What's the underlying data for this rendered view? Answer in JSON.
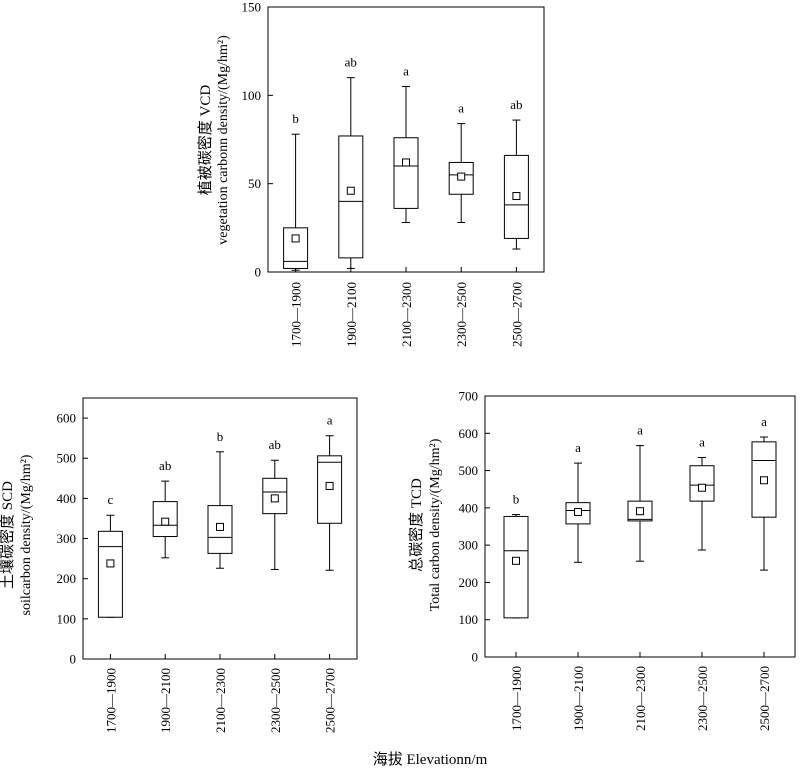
{
  "figure": {
    "xlabel": "海拔  Elevationn/m"
  },
  "chart_data": [
    {
      "type": "box",
      "id": "vcd",
      "ylabel_cn": "植被碳密度 VCD",
      "ylabel_en": "vegetation carbonn density/(Mg/hm²)",
      "ylim": [
        0,
        150
      ],
      "yticks": [
        0,
        50,
        100,
        150
      ],
      "categories": [
        "1700—1900",
        "1900—2100",
        "2100—2300",
        "2300—2500",
        "2500—2700"
      ],
      "boxes": [
        {
          "min": 1,
          "q1": 2,
          "median": 6,
          "q3": 25,
          "max": 78,
          "mean": 19,
          "letter": "b"
        },
        {
          "min": 2,
          "q1": 8,
          "median": 40,
          "q3": 77,
          "max": 110,
          "mean": 46,
          "letter": "ab"
        },
        {
          "min": 28,
          "q1": 36,
          "median": 60,
          "q3": 76,
          "max": 105,
          "mean": 62,
          "letter": "a"
        },
        {
          "min": 28,
          "q1": 44,
          "median": 55,
          "q3": 62,
          "max": 84,
          "mean": 54,
          "letter": "a"
        },
        {
          "min": 13,
          "q1": 19,
          "median": 38,
          "q3": 66,
          "max": 86,
          "mean": 43,
          "letter": "ab"
        }
      ]
    },
    {
      "type": "box",
      "id": "scd",
      "ylabel_cn": "土壤碳密度 SCD",
      "ylabel_en": "soilcarbon density/(Mg/hm²)",
      "ylim": [
        0,
        650
      ],
      "yticks": [
        0,
        100,
        200,
        300,
        400,
        500,
        600
      ],
      "categories": [
        "1700—1900",
        "1900—2100",
        "2100—2300",
        "2300—2500",
        "2500—2700"
      ],
      "boxes": [
        {
          "min": 104,
          "q1": 104,
          "median": 280,
          "q3": 318,
          "max": 358,
          "mean": 238,
          "letter": "c"
        },
        {
          "min": 252,
          "q1": 305,
          "median": 333,
          "q3": 392,
          "max": 443,
          "mean": 342,
          "letter": "ab"
        },
        {
          "min": 226,
          "q1": 263,
          "median": 303,
          "q3": 382,
          "max": 516,
          "mean": 329,
          "letter": "b"
        },
        {
          "min": 223,
          "q1": 362,
          "median": 416,
          "q3": 450,
          "max": 495,
          "mean": 400,
          "letter": "ab"
        },
        {
          "min": 221,
          "q1": 338,
          "median": 490,
          "q3": 506,
          "max": 556,
          "mean": 431,
          "letter": "a"
        }
      ]
    },
    {
      "type": "box",
      "id": "tcd",
      "ylabel_cn": "总碳密度 TCD",
      "ylabel_en": "Total carbon density/(Mg/hm²)",
      "ylim": [
        0,
        700
      ],
      "yticks": [
        0,
        100,
        200,
        300,
        400,
        500,
        600,
        700
      ],
      "categories": [
        "1700—1900",
        "1900—2100",
        "2100—2300",
        "2300—2500",
        "2500—2700"
      ],
      "boxes": [
        {
          "min": 105,
          "q1": 105,
          "median": 285,
          "q3": 377,
          "max": 382,
          "mean": 258,
          "letter": "b"
        },
        {
          "min": 254,
          "q1": 357,
          "median": 393,
          "q3": 414,
          "max": 520,
          "mean": 389,
          "letter": "a"
        },
        {
          "min": 257,
          "q1": 365,
          "median": 369,
          "q3": 418,
          "max": 567,
          "mean": 391,
          "letter": "a"
        },
        {
          "min": 287,
          "q1": 418,
          "median": 461,
          "q3": 513,
          "max": 535,
          "mean": 454,
          "letter": "a"
        },
        {
          "min": 233,
          "q1": 375,
          "median": 527,
          "q3": 577,
          "max": 590,
          "mean": 474,
          "letter": "a"
        }
      ]
    }
  ]
}
